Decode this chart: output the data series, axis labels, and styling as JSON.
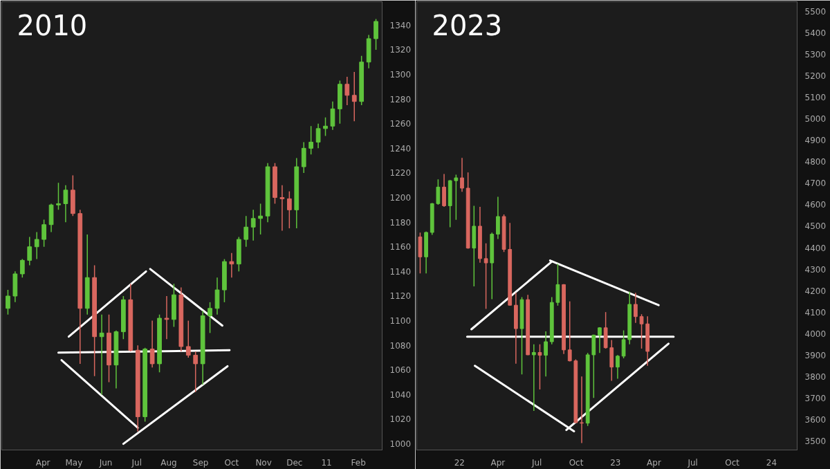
{
  "chart_data": [
    {
      "type": "candlestick",
      "title": "2010",
      "xlim": [
        "2010-02-20",
        "2011-02-24"
      ],
      "ylim": [
        995,
        1359
      ],
      "xticks": [
        {
          "value": "2010-04-01",
          "label": "Apr"
        },
        {
          "value": "2010-05-01",
          "label": "May"
        },
        {
          "value": "2010-06-01",
          "label": "Jun"
        },
        {
          "value": "2010-07-01",
          "label": "Jul"
        },
        {
          "value": "2010-08-01",
          "label": "Aug"
        },
        {
          "value": "2010-09-01",
          "label": "Sep"
        },
        {
          "value": "2010-10-01",
          "label": "Oct"
        },
        {
          "value": "2010-11-01",
          "label": "Nov"
        },
        {
          "value": "2010-12-01",
          "label": "Dec"
        },
        {
          "value": "2011-01-01",
          "label": "11"
        },
        {
          "value": "2011-02-01",
          "label": "Feb"
        }
      ],
      "yticks": [
        1000,
        1020,
        1040,
        1060,
        1080,
        1100,
        1120,
        1140,
        1160,
        1180,
        1200,
        1220,
        1240,
        1260,
        1280,
        1300,
        1320,
        1340
      ],
      "x": [
        "2010-02-26",
        "2010-03-05",
        "2010-03-12",
        "2010-03-19",
        "2010-03-26",
        "2010-04-02",
        "2010-04-09",
        "2010-04-16",
        "2010-04-23",
        "2010-04-30",
        "2010-05-07",
        "2010-05-14",
        "2010-05-21",
        "2010-05-28",
        "2010-06-04",
        "2010-06-11",
        "2010-06-18",
        "2010-06-25",
        "2010-07-02",
        "2010-07-09",
        "2010-07-16",
        "2010-07-23",
        "2010-07-30",
        "2010-08-06",
        "2010-08-13",
        "2010-08-20",
        "2010-08-27",
        "2010-09-03",
        "2010-09-10",
        "2010-09-17",
        "2010-09-24",
        "2010-10-01",
        "2010-10-08",
        "2010-10-15",
        "2010-10-22",
        "2010-10-29",
        "2010-11-05",
        "2010-11-12",
        "2010-11-19",
        "2010-11-26",
        "2010-12-03",
        "2010-12-10",
        "2010-12-17",
        "2010-12-24",
        "2010-12-31",
        "2011-01-07",
        "2011-01-14",
        "2011-01-21",
        "2011-01-28",
        "2011-02-04",
        "2011-02-11",
        "2011-02-18"
      ],
      "ohlc": [
        [
          1110,
          1125,
          1105,
          1120
        ],
        [
          1120,
          1140,
          1115,
          1138
        ],
        [
          1138,
          1150,
          1135,
          1149
        ],
        [
          1149,
          1168,
          1145,
          1160
        ],
        [
          1160,
          1172,
          1150,
          1166
        ],
        [
          1166,
          1182,
          1160,
          1178
        ],
        [
          1178,
          1195,
          1172,
          1194
        ],
        [
          1194,
          1212,
          1190,
          1195
        ],
        [
          1195,
          1210,
          1180,
          1206
        ],
        [
          1206,
          1218,
          1185,
          1187
        ],
        [
          1187,
          1190,
          1065,
          1110
        ],
        [
          1110,
          1170,
          1105,
          1135
        ],
        [
          1135,
          1145,
          1055,
          1087
        ],
        [
          1087,
          1105,
          1040,
          1090
        ],
        [
          1090,
          1105,
          1050,
          1064
        ],
        [
          1064,
          1092,
          1045,
          1091
        ],
        [
          1091,
          1120,
          1085,
          1117
        ],
        [
          1117,
          1130,
          1075,
          1076
        ],
        [
          1076,
          1080,
          1010,
          1022
        ],
        [
          1022,
          1078,
          1018,
          1077
        ],
        [
          1077,
          1100,
          1062,
          1065
        ],
        [
          1065,
          1105,
          1058,
          1102
        ],
        [
          1102,
          1120,
          1085,
          1101
        ],
        [
          1101,
          1130,
          1095,
          1121
        ],
        [
          1121,
          1127,
          1075,
          1079
        ],
        [
          1079,
          1100,
          1070,
          1072
        ],
        [
          1072,
          1075,
          1042,
          1065
        ],
        [
          1065,
          1108,
          1048,
          1104
        ],
        [
          1104,
          1115,
          1090,
          1110
        ],
        [
          1110,
          1135,
          1105,
          1125
        ],
        [
          1125,
          1150,
          1115,
          1148
        ],
        [
          1148,
          1155,
          1135,
          1146
        ],
        [
          1146,
          1168,
          1140,
          1166
        ],
        [
          1166,
          1185,
          1160,
          1176
        ],
        [
          1176,
          1190,
          1165,
          1183
        ],
        [
          1183,
          1195,
          1170,
          1185
        ],
        [
          1185,
          1228,
          1180,
          1225
        ],
        [
          1225,
          1228,
          1195,
          1200
        ],
        [
          1200,
          1210,
          1173,
          1199
        ],
        [
          1199,
          1205,
          1175,
          1190
        ],
        [
          1190,
          1232,
          1175,
          1225
        ],
        [
          1225,
          1245,
          1220,
          1240
        ],
        [
          1240,
          1258,
          1235,
          1245
        ],
        [
          1245,
          1260,
          1240,
          1256
        ],
        [
          1256,
          1265,
          1250,
          1258
        ],
        [
          1258,
          1278,
          1255,
          1272
        ],
        [
          1272,
          1295,
          1260,
          1292
        ],
        [
          1292,
          1298,
          1275,
          1283
        ],
        [
          1283,
          1302,
          1262,
          1278
        ],
        [
          1278,
          1315,
          1275,
          1310
        ],
        [
          1310,
          1332,
          1305,
          1329
        ],
        [
          1329,
          1345,
          1320,
          1343
        ]
      ],
      "colors": [
        "#5fc43c",
        "#5fc43c",
        "#5fc43c",
        "#5fc43c",
        "#5fc43c",
        "#5fc43c",
        "#5fc43c",
        "#5fc43c",
        "#5fc43c",
        "#d9675f",
        "#d9675f",
        "#5fc43c",
        "#d9675f",
        "#5fc43c",
        "#d9675f",
        "#5fc43c",
        "#5fc43c",
        "#d9675f",
        "#d9675f",
        "#5fc43c",
        "#d9675f",
        "#5fc43c",
        "#d9675f",
        "#5fc43c",
        "#d9675f",
        "#d9675f",
        "#d9675f",
        "#5fc43c",
        "#5fc43c",
        "#5fc43c",
        "#5fc43c",
        "#d9675f",
        "#5fc43c",
        "#5fc43c",
        "#5fc43c",
        "#5fc43c",
        "#5fc43c",
        "#d9675f",
        "#d9675f",
        "#d9675f",
        "#5fc43c",
        "#5fc43c",
        "#5fc43c",
        "#5fc43c",
        "#5fc43c",
        "#5fc43c",
        "#5fc43c",
        "#d9675f",
        "#d9675f",
        "#5fc43c",
        "#5fc43c",
        "#5fc43c"
      ],
      "series": [
        {
          "type": "line",
          "color": "#ffffff",
          "x": [
            "2010-04-26",
            "2010-07-10"
          ],
          "values": [
            1087,
            1140
          ]
        },
        {
          "type": "line",
          "color": "#ffffff",
          "x": [
            "2010-07-14",
            "2010-09-22"
          ],
          "values": [
            1142,
            1096
          ]
        },
        {
          "type": "line",
          "color": "#ffffff",
          "x": [
            "2010-04-16",
            "2010-09-29"
          ],
          "values": [
            1074,
            1076
          ]
        },
        {
          "type": "line",
          "color": "#ffffff",
          "x": [
            "2010-04-19",
            "2010-07-02"
          ],
          "values": [
            1068,
            1013
          ]
        },
        {
          "type": "line",
          "color": "#ffffff",
          "x": [
            "2010-06-18",
            "2010-09-27"
          ],
          "values": [
            1000,
            1063
          ]
        }
      ]
    },
    {
      "type": "candlestick",
      "title": "2023",
      "xlim": [
        "2021-09-23",
        "2024-03-01"
      ],
      "ylim": [
        3458,
        5545
      ],
      "xticks": [
        {
          "value": "2022-01-01",
          "label": "22"
        },
        {
          "value": "2022-04-01",
          "label": "Apr"
        },
        {
          "value": "2022-07-01",
          "label": "Jul"
        },
        {
          "value": "2022-10-01",
          "label": "Oct"
        },
        {
          "value": "2023-01-01",
          "label": "23"
        },
        {
          "value": "2023-04-01",
          "label": "Apr"
        },
        {
          "value": "2023-07-01",
          "label": "Jul"
        },
        {
          "value": "2023-10-01",
          "label": "Oct"
        },
        {
          "value": "2024-01-01",
          "label": "24"
        }
      ],
      "yticks": [
        3500,
        3600,
        3700,
        3800,
        3900,
        4000,
        4100,
        4200,
        4300,
        4400,
        4500,
        4600,
        4700,
        4800,
        4900,
        5000,
        5100,
        5200,
        5300,
        5400,
        5500
      ],
      "x": [
        "2021-10-01",
        "2021-10-15",
        "2021-10-29",
        "2021-11-12",
        "2021-11-26",
        "2021-12-10",
        "2021-12-24",
        "2022-01-07",
        "2022-01-21",
        "2022-02-04",
        "2022-02-18",
        "2022-03-04",
        "2022-03-18",
        "2022-04-01",
        "2022-04-15",
        "2022-04-29",
        "2022-05-13",
        "2022-05-27",
        "2022-06-10",
        "2022-06-24",
        "2022-07-08",
        "2022-07-22",
        "2022-08-05",
        "2022-08-19",
        "2022-09-02",
        "2022-09-16",
        "2022-09-30",
        "2022-10-14",
        "2022-10-28",
        "2022-11-11",
        "2022-11-25",
        "2022-12-09",
        "2022-12-23",
        "2023-01-06",
        "2023-01-20",
        "2023-02-03",
        "2023-02-17",
        "2023-03-03",
        "2023-03-17"
      ],
      "ohlc": [
        [
          4450,
          4470,
          4280,
          4357
        ],
        [
          4357,
          4475,
          4280,
          4471
        ],
        [
          4471,
          4608,
          4460,
          4605
        ],
        [
          4605,
          4718,
          4600,
          4682
        ],
        [
          4682,
          4743,
          4590,
          4595
        ],
        [
          4595,
          4715,
          4495,
          4712
        ],
        [
          4712,
          4740,
          4530,
          4725
        ],
        [
          4725,
          4818,
          4660,
          4677
        ],
        [
          4677,
          4750,
          4395,
          4398
        ],
        [
          4398,
          4595,
          4220,
          4500
        ],
        [
          4500,
          4590,
          4330,
          4349
        ],
        [
          4349,
          4420,
          4115,
          4329
        ],
        [
          4329,
          4470,
          4160,
          4463
        ],
        [
          4463,
          4637,
          4440,
          4545
        ],
        [
          4545,
          4555,
          4380,
          4392
        ],
        [
          4392,
          4515,
          4130,
          4132
        ],
        [
          4132,
          4190,
          3860,
          4023
        ],
        [
          4023,
          4170,
          3810,
          4158
        ],
        [
          4158,
          4180,
          3900,
          3901
        ],
        [
          3901,
          3950,
          3640,
          3912
        ],
        [
          3912,
          3950,
          3740,
          3899
        ],
        [
          3899,
          4010,
          3800,
          3962
        ],
        [
          3962,
          4170,
          3950,
          4145
        ],
        [
          4145,
          4325,
          4130,
          4228
        ],
        [
          4228,
          4230,
          3905,
          3924
        ],
        [
          3924,
          4150,
          3870,
          3873
        ],
        [
          3873,
          3880,
          3585,
          3585
        ],
        [
          3585,
          3800,
          3490,
          3583
        ],
        [
          3583,
          3910,
          3570,
          3901
        ],
        [
          3901,
          3995,
          3700,
          3993
        ],
        [
          3993,
          4030,
          3910,
          4027
        ],
        [
          4027,
          4100,
          3930,
          3934
        ],
        [
          3934,
          3970,
          3780,
          3844
        ],
        [
          3844,
          3900,
          3790,
          3895
        ],
        [
          3895,
          4015,
          3885,
          3972
        ],
        [
          3972,
          4195,
          3950,
          4136
        ],
        [
          4136,
          4190,
          4050,
          4079
        ],
        [
          4079,
          4090,
          3930,
          4045
        ],
        [
          4045,
          4080,
          3850,
          3917
        ]
      ],
      "colors": [
        "#d9675f",
        "#5fc43c",
        "#5fc43c",
        "#5fc43c",
        "#d9675f",
        "#5fc43c",
        "#5fc43c",
        "#d9675f",
        "#d9675f",
        "#5fc43c",
        "#d9675f",
        "#d9675f",
        "#5fc43c",
        "#5fc43c",
        "#d9675f",
        "#d9675f",
        "#d9675f",
        "#5fc43c",
        "#d9675f",
        "#5fc43c",
        "#d9675f",
        "#5fc43c",
        "#5fc43c",
        "#5fc43c",
        "#d9675f",
        "#d9675f",
        "#d9675f",
        "#d9675f",
        "#5fc43c",
        "#5fc43c",
        "#5fc43c",
        "#d9675f",
        "#d9675f",
        "#5fc43c",
        "#5fc43c",
        "#5fc43c",
        "#d9675f",
        "#d9675f",
        "#d9675f"
      ],
      "series": [
        {
          "type": "line",
          "color": "#ffffff",
          "x": [
            "2022-01-29",
            "2022-08-05"
          ],
          "values": [
            4020,
            4335
          ]
        },
        {
          "type": "line",
          "color": "#ffffff",
          "x": [
            "2022-08-01",
            "2023-04-12"
          ],
          "values": [
            4340,
            4132
          ]
        },
        {
          "type": "line",
          "color": "#ffffff",
          "x": [
            "2022-01-19",
            "2023-05-17"
          ],
          "values": [
            3985,
            3985
          ]
        },
        {
          "type": "line",
          "color": "#ffffff",
          "x": [
            "2022-02-06",
            "2022-09-26"
          ],
          "values": [
            3850,
            3545
          ]
        },
        {
          "type": "line",
          "color": "#ffffff",
          "x": [
            "2022-09-08",
            "2023-05-05"
          ],
          "values": [
            3551,
            3953
          ]
        }
      ]
    }
  ]
}
